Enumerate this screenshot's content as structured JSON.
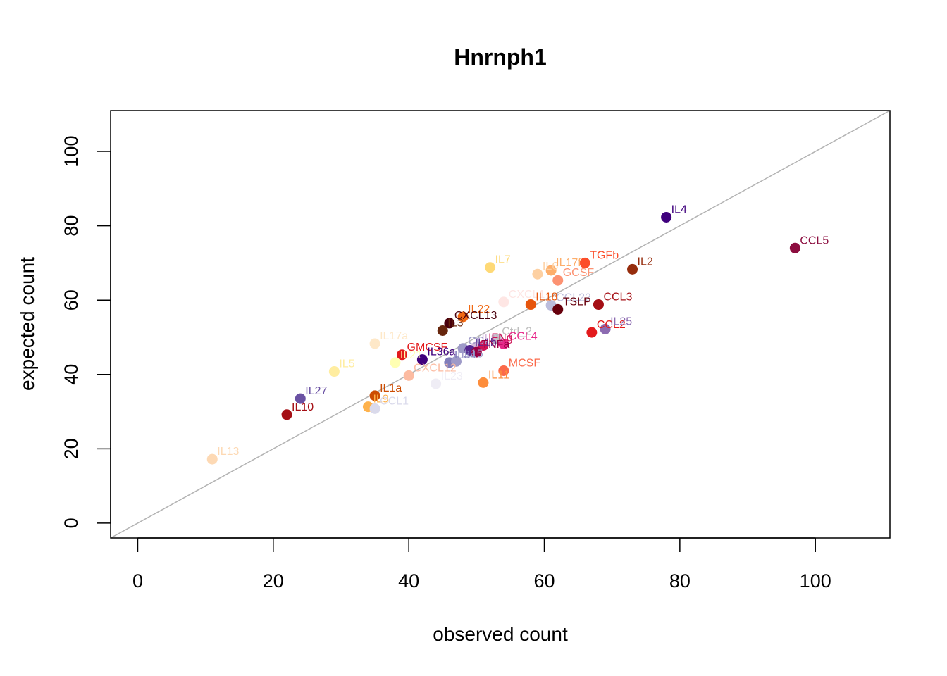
{
  "chart_data": {
    "type": "scatter",
    "title": "Hnrnph1",
    "xlabel": "observed count",
    "ylabel": "expected count",
    "xlim": [
      -4,
      111
    ],
    "ylim": [
      -4,
      111
    ],
    "x_ticks": [
      0,
      20,
      40,
      60,
      80,
      100
    ],
    "y_ticks": [
      0,
      20,
      40,
      60,
      80,
      100
    ],
    "reference_line": "y = x",
    "reference_line_color": "#b3b3b3",
    "points": [
      {
        "label": "IL4",
        "x": 78,
        "y": 82.3,
        "color": "#3f007d"
      },
      {
        "label": "CCL5",
        "x": 97,
        "y": 74.0,
        "color": "#8c0d3f"
      },
      {
        "label": "TGFb",
        "x": 66,
        "y": 70.0,
        "color": "#fc4e2a"
      },
      {
        "label": "IL2",
        "x": 73,
        "y": 68.3,
        "color": "#962d0d"
      },
      {
        "label": "IL7",
        "x": 52,
        "y": 68.8,
        "color": "#fed976"
      },
      {
        "label": "IL17f",
        "x": 61,
        "y": 68.0,
        "color": "#fdae6b"
      },
      {
        "label": "IL6",
        "x": 59,
        "y": 67.0,
        "color": "#fdd0a2"
      },
      {
        "label": "GCSF",
        "x": 62,
        "y": 65.3,
        "color": "#fc9272"
      },
      {
        "label": "CXCL1",
        "x": 54,
        "y": 59.5,
        "color": "#fee6e4"
      },
      {
        "label": "IL18",
        "x": 58,
        "y": 58.8,
        "color": "#e6550d"
      },
      {
        "label": "CCL22",
        "x": 61,
        "y": 58.6,
        "color": "#bcbddc"
      },
      {
        "label": "TSLP",
        "x": 62,
        "y": 57.5,
        "color": "#67000d"
      },
      {
        "label": "CCL3",
        "x": 68,
        "y": 58.8,
        "color": "#a50f15"
      },
      {
        "label": "IL22",
        "x": 48,
        "y": 55.5,
        "color": "#f16913"
      },
      {
        "label": "CXCL13",
        "x": 46,
        "y": 53.8,
        "color": "#49000d"
      },
      {
        "label": "IL3",
        "x": 45,
        "y": 51.8,
        "color": "#67260d"
      },
      {
        "label": "Ctrl_2",
        "x": 53,
        "y": 49.5,
        "color": "#bdbdbd"
      },
      {
        "label": "CCL4",
        "x": 54,
        "y": 48.2,
        "color": "#e7298a"
      },
      {
        "label": "CCL2",
        "x": 67,
        "y": 51.3,
        "color": "#e31a1c"
      },
      {
        "label": "IL25",
        "x": 69,
        "y": 52.2,
        "color": "#8c6bb1"
      },
      {
        "label": "IL17a",
        "x": 35,
        "y": 48.3,
        "color": "#fee8c8"
      },
      {
        "label": "CCL1",
        "x": 48,
        "y": 47.0,
        "color": "#9e9ac8"
      },
      {
        "label": "IL33",
        "x": 50,
        "y": 47.5,
        "color": "#d4b9da"
      },
      {
        "label": "IFNg",
        "x": 51,
        "y": 47.8,
        "color": "#ce1256"
      },
      {
        "label": "IL1b",
        "x": 49,
        "y": 46.5,
        "color": "#54278f"
      },
      {
        "label": "TNFa",
        "x": 50,
        "y": 46.0,
        "color": "#980043"
      },
      {
        "label": "GMCSF",
        "x": 39,
        "y": 45.3,
        "color": "#e31a1c"
      },
      {
        "label": "IL36a",
        "x": 42,
        "y": 44.0,
        "color": "#3f007d"
      },
      {
        "label": "IL34",
        "x": 46,
        "y": 43.2,
        "color": "#807dba"
      },
      {
        "label": "IL15",
        "x": 47,
        "y": 43.5,
        "color": "#9e9ac8"
      },
      {
        "label": "IL21",
        "x": 38,
        "y": 43.2,
        "color": "#ffffb2"
      },
      {
        "label": "IL5",
        "x": 29,
        "y": 40.8,
        "color": "#ffeda0"
      },
      {
        "label": "CXCL12",
        "x": 40,
        "y": 39.7,
        "color": "#fcbba1"
      },
      {
        "label": "MCSF",
        "x": 54,
        "y": 41.0,
        "color": "#fb6a4a"
      },
      {
        "label": "IL11",
        "x": 51,
        "y": 37.8,
        "color": "#fd8d3c"
      },
      {
        "label": "IL23",
        "x": 44,
        "y": 37.5,
        "color": "#efedf5"
      },
      {
        "label": "IL27",
        "x": 24,
        "y": 33.5,
        "color": "#6a51a3"
      },
      {
        "label": "IL1a",
        "x": 35,
        "y": 34.3,
        "color": "#cc4c02"
      },
      {
        "label": "IL9",
        "x": 34,
        "y": 31.3,
        "color": "#feb24c"
      },
      {
        "label": "CCL1",
        "x": 35,
        "y": 30.8,
        "color": "#dadaeb"
      },
      {
        "label": "IL10",
        "x": 22,
        "y": 29.2,
        "color": "#a50f15"
      },
      {
        "label": "IL13",
        "x": 11,
        "y": 17.2,
        "color": "#fdd9b4"
      }
    ]
  }
}
